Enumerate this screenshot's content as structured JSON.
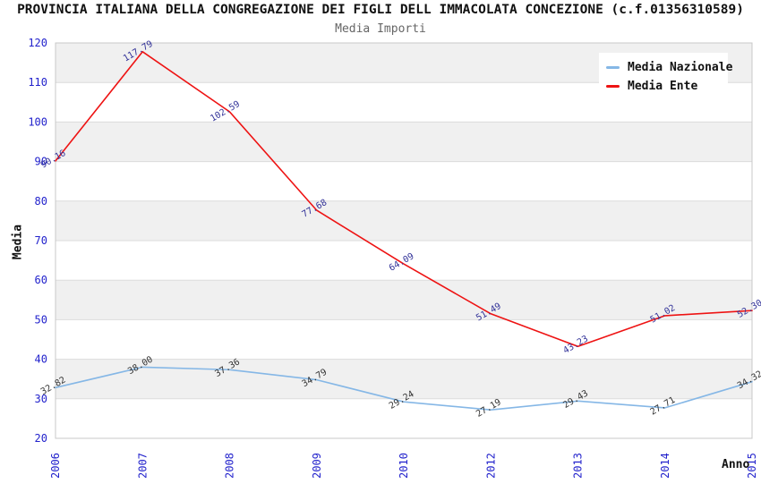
{
  "chart_data": {
    "type": "line",
    "title": "PROVINCIA ITALIANA DELLA CONGREGAZIONE DEI FIGLI DELL IMMACOLATA CONCEZIONE (c.f.01356310589)",
    "subtitle": "Media Importi",
    "xlabel": "Anno",
    "ylabel": "Media",
    "categories": [
      "2006",
      "2007",
      "2008",
      "2009",
      "2010",
      "2012",
      "2013",
      "2014",
      "2015"
    ],
    "series": [
      {
        "name": "Media Nazionale",
        "color": "#85b7e6",
        "label_color": "#333333",
        "values": [
          32.82,
          38.0,
          37.36,
          34.79,
          29.24,
          27.19,
          29.43,
          27.71,
          34.32
        ]
      },
      {
        "name": "Media Ente",
        "color": "#ee1313",
        "label_color": "#333399",
        "values": [
          90.16,
          117.79,
          102.59,
          77.68,
          64.09,
          51.49,
          43.23,
          51.02,
          52.3
        ]
      }
    ],
    "ylim": [
      20,
      120
    ],
    "ytick_step": 10,
    "yticks": [
      20,
      30,
      40,
      50,
      60,
      70,
      80,
      90,
      100,
      110,
      120
    ],
    "grid": true,
    "band_fill": true,
    "legend_position": "top-right",
    "colors": {
      "tick_label": "#2222cc",
      "band": "#f0f0f0",
      "gridline": "#dcdcdc",
      "plot_border": "#c8c8c8",
      "subtitle": "#666666",
      "axis_title": "#111111"
    }
  }
}
